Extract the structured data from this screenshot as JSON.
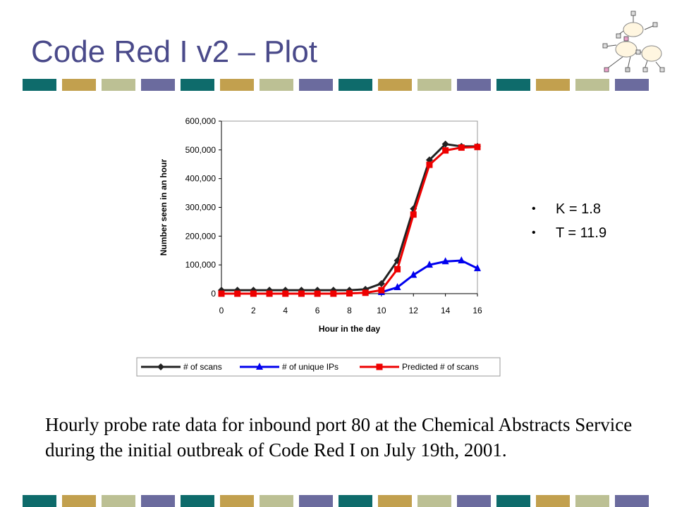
{
  "slide": {
    "title": "Code Red I v2 – Plot",
    "bullets": [
      "K = 1.8",
      "T = 11.9"
    ],
    "caption": "Hourly probe rate data for inbound port 80 at the Chemical Abstracts Service during the initial outbreak of Code Red I on July 19th, 2001.",
    "stripe_colors": [
      "#0e6b6b",
      "#c2a04e",
      "#bcc094",
      "#6b6b9e"
    ]
  },
  "chart_data": {
    "type": "line",
    "title": "",
    "xlabel": "Hour in the day",
    "ylabel": "Number seen in an hour",
    "xlim": [
      0,
      16
    ],
    "ylim": [
      0,
      600000
    ],
    "x_ticks": [
      "0",
      "2",
      "4",
      "6",
      "8",
      "10",
      "12",
      "14",
      "16"
    ],
    "y_ticks": [
      "0",
      "100,000",
      "200,000",
      "300,000",
      "400,000",
      "500,000",
      "600,000"
    ],
    "legend_position": "bottom",
    "grid": false,
    "x": [
      0,
      1,
      2,
      3,
      4,
      5,
      6,
      7,
      8,
      9,
      10,
      11,
      12,
      13,
      14,
      15,
      16
    ],
    "series": [
      {
        "name": "# of scans",
        "color": "#222222",
        "marker": "diamond",
        "values": [
          12000,
          12000,
          12000,
          12000,
          12000,
          12000,
          12000,
          12000,
          12000,
          15000,
          35000,
          115000,
          295000,
          465000,
          520000,
          512000,
          512000
        ]
      },
      {
        "name": "# of unique IPs",
        "color": "#0000ee",
        "marker": "triangle",
        "values": [
          null,
          null,
          null,
          null,
          null,
          null,
          null,
          null,
          null,
          null,
          5000,
          22000,
          65000,
          100000,
          112000,
          115000,
          88000
        ]
      },
      {
        "name": "Predicted # of scans",
        "color": "#ee0000",
        "marker": "square",
        "values": [
          0,
          0,
          0,
          0,
          0,
          0,
          0,
          0,
          1000,
          3000,
          12000,
          85000,
          275000,
          448000,
          498000,
          508000,
          510000
        ]
      }
    ]
  }
}
